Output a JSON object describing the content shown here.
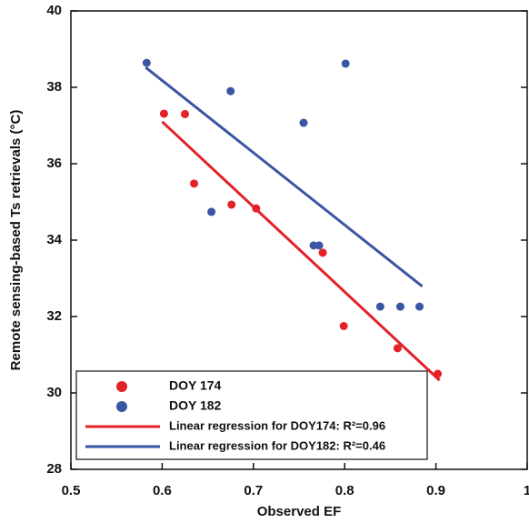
{
  "chart_data": {
    "type": "scatter",
    "xlabel": "Observed EF",
    "ylabel": "Remote sensing-based Ts retrievals (°C)",
    "xlim": [
      0.5,
      1
    ],
    "xticks": [
      0.5,
      0.6,
      0.7,
      0.8,
      0.9,
      1
    ],
    "ylim": [
      28,
      40
    ],
    "yticks": [
      28,
      30,
      32,
      34,
      36,
      38,
      40
    ],
    "legend": "lower-left",
    "series": [
      {
        "name": "DOY 174",
        "color": "#e32228",
        "x": [
          0.602,
          0.625,
          0.635,
          0.676,
          0.703,
          0.776,
          0.799,
          0.858,
          0.902
        ],
        "values": [
          37.31,
          37.3,
          35.48,
          34.93,
          34.83,
          33.67,
          31.75,
          31.17,
          30.5
        ]
      },
      {
        "name": "DOY 182",
        "color": "#3a56a3",
        "x": [
          0.583,
          0.675,
          0.755,
          0.801,
          0.654,
          0.766,
          0.772,
          0.839,
          0.861,
          0.882
        ],
        "values": [
          38.64,
          37.9,
          37.07,
          38.62,
          34.74,
          33.86,
          33.86,
          32.26,
          32.26,
          32.26
        ]
      }
    ],
    "lines": [
      {
        "name": "Linear regression for DOY174: R²=0.96",
        "color": "#e32228",
        "x": [
          0.6,
          0.904
        ],
        "values": [
          37.1,
          30.33
        ]
      },
      {
        "name": "Linear regression for DOY182: R²=0.46",
        "color": "#3a56a3",
        "x": [
          0.582,
          0.885
        ],
        "values": [
          38.52,
          32.79
        ]
      }
    ]
  }
}
